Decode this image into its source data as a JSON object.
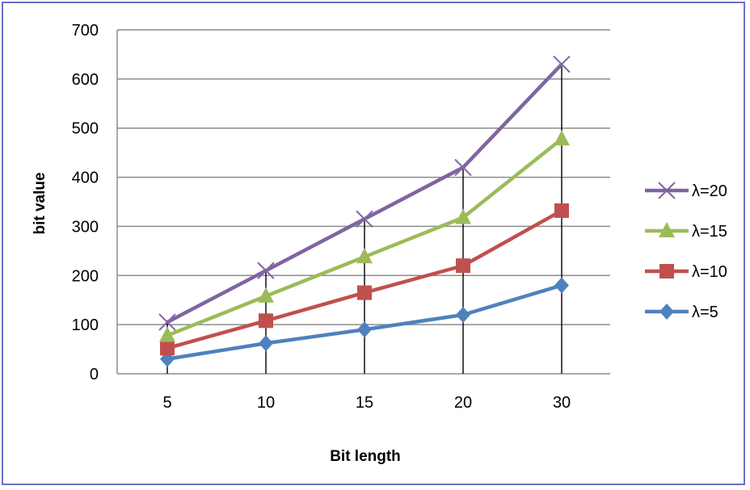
{
  "chart_data": {
    "type": "line",
    "categories": [
      "5",
      "10",
      "15",
      "20",
      "30"
    ],
    "xlabel": "Bit length",
    "ylabel": "bit value",
    "ylim": [
      0,
      700
    ],
    "yticks": [
      0,
      100,
      200,
      300,
      400,
      500,
      600,
      700
    ],
    "grid": true,
    "legend_position": "right",
    "series": [
      {
        "name": "λ=20",
        "values": [
          105,
          210,
          315,
          420,
          630
        ],
        "color": "#8064a2",
        "marker": "x"
      },
      {
        "name": "λ=15",
        "values": [
          78,
          158,
          238,
          318,
          478
        ],
        "color": "#9bbb59",
        "marker": "triangle"
      },
      {
        "name": "λ=10",
        "values": [
          52,
          108,
          165,
          220,
          332
        ],
        "color": "#c0504d",
        "marker": "square"
      },
      {
        "name": "λ=5",
        "values": [
          30,
          62,
          90,
          120,
          180
        ],
        "color": "#4f81bd",
        "marker": "diamond"
      }
    ]
  }
}
